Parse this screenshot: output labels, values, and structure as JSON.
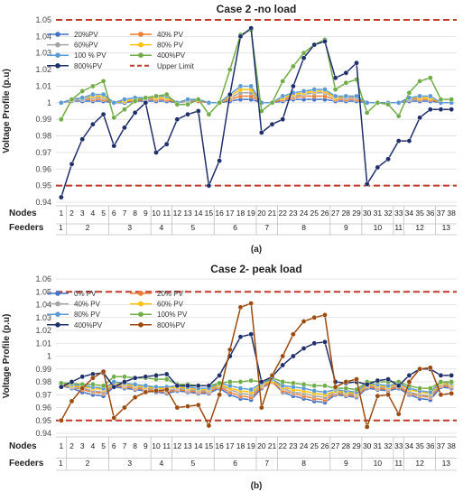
{
  "chart_data": [
    {
      "type": "line",
      "title": "Case 2 -no load",
      "ylabel": "Voltage Profile (p.u)",
      "xlabel_nodes": "Nodes",
      "xlabel_feeders": "Feeders",
      "panel_label": "(a)",
      "ylim": [
        0.94,
        1.05
      ],
      "yticks": [
        "0.94",
        "0.95",
        "0.96",
        "0.97",
        "0.98",
        "0.99",
        "1",
        "1.01",
        "1.02",
        "1.03",
        "1.04",
        "1.05"
      ],
      "x": [
        1,
        2,
        3,
        4,
        5,
        6,
        7,
        8,
        9,
        10,
        11,
        12,
        13,
        14,
        15,
        16,
        17,
        18,
        19,
        20,
        21,
        22,
        23,
        24,
        25,
        26,
        27,
        28,
        29,
        30,
        31,
        32,
        33,
        34,
        35,
        36,
        37,
        38
      ],
      "feeders": [
        {
          "label": "1",
          "start": 1,
          "end": 1
        },
        {
          "label": "2",
          "start": 2,
          "end": 5
        },
        {
          "label": "3",
          "start": 6,
          "end": 9
        },
        {
          "label": "4",
          "start": 10,
          "end": 11
        },
        {
          "label": "5",
          "start": 12,
          "end": 15
        },
        {
          "label": "6",
          "start": 16,
          "end": 19
        },
        {
          "label": "7",
          "start": 20,
          "end": 21
        },
        {
          "label": "8",
          "start": 22,
          "end": 26
        },
        {
          "label": "9",
          "start": 27,
          "end": 29
        },
        {
          "label": "10",
          "start": 30,
          "end": 32
        },
        {
          "label": "11",
          "start": 33,
          "end": 33
        },
        {
          "label": "12",
          "start": 34,
          "end": 36
        },
        {
          "label": "13",
          "start": 37,
          "end": 38
        }
      ],
      "legend_position": "top-left",
      "series": [
        {
          "name": "20%PV",
          "color": "#4472c4",
          "values": [
            1,
            1.001,
            1.001,
            1.001,
            1.001,
            1,
            1,
            1.001,
            1.001,
            1.001,
            1.001,
            1,
            1.001,
            1.001,
            1,
            1,
            1.001,
            1.002,
            1.002,
            1,
            1,
            1.001,
            1.002,
            1.002,
            1.002,
            1.002,
            1.001,
            1.001,
            1.001,
            1,
            1,
            1,
            1,
            1.001,
            1.001,
            1.001,
            1,
            1
          ]
        },
        {
          "name": "40% PV",
          "color": "#ed7d31",
          "values": [
            1,
            1.001,
            1.002,
            1.002,
            1.002,
            1,
            1.001,
            1.001,
            1.002,
            1.002,
            1.002,
            1,
            1.001,
            1.001,
            1,
            1,
            1.002,
            1.004,
            1.004,
            1,
            1,
            1.002,
            1.003,
            1.004,
            1.004,
            1.004,
            1.002,
            1.002,
            1.002,
            1,
            1,
            1,
            1,
            1.002,
            1.002,
            1.002,
            1,
            1
          ]
        },
        {
          "name": "60%PV",
          "color": "#a5a5a5",
          "values": [
            1,
            1.001,
            1.002,
            1.003,
            1.003,
            1,
            1.001,
            1.002,
            1.002,
            1.003,
            1.003,
            1,
            1.001,
            1.002,
            1,
            1,
            1.003,
            1.006,
            1.006,
            1,
            1,
            1.003,
            1.004,
            1.005,
            1.006,
            1.006,
            1.003,
            1.003,
            1.003,
            1,
            1,
            1,
            1,
            1.002,
            1.003,
            1.003,
            1,
            1
          ]
        },
        {
          "name": "80% PV",
          "color": "#ffc000",
          "values": [
            1,
            1.002,
            1.003,
            1.004,
            1.004,
            1,
            1.001,
            1.002,
            1.003,
            1.003,
            1.003,
            1,
            1.002,
            1.002,
            1,
            1,
            1.004,
            1.008,
            1.008,
            1,
            1,
            1.003,
            1.005,
            1.006,
            1.007,
            1.007,
            1.003,
            1.004,
            1.004,
            1,
            1,
            1,
            1,
            1.003,
            1.003,
            1.003,
            1,
            1
          ]
        },
        {
          "name": "100 % PV",
          "color": "#5b9bd5",
          "values": [
            1,
            1.002,
            1.003,
            1.005,
            1.005,
            1,
            1.002,
            1.003,
            1.003,
            1.004,
            1.004,
            1,
            1.002,
            1.002,
            1,
            1,
            1.005,
            1.01,
            1.01,
            1,
            1,
            1.004,
            1.006,
            1.007,
            1.008,
            1.008,
            1.004,
            1.004,
            1.004,
            1,
            1,
            1,
            1,
            1.003,
            1.004,
            1.004,
            1,
            1
          ]
        },
        {
          "name": "400%PV",
          "color": "#70ad47",
          "values": [
            0.99,
            1.002,
            1.007,
            1.01,
            1.013,
            0.991,
            0.996,
            1.001,
            1.003,
            1.004,
            1.005,
            0.999,
            0.999,
            1.002,
            0.993,
            1.0,
            1.02,
            1.041,
            1.044,
            0.995,
            1.0,
            1.013,
            1.022,
            1.03,
            1.035,
            1.038,
            1.008,
            1.012,
            1.014,
            0.994,
            1.0,
            0.999,
            0.992,
            1.006,
            1.013,
            1.015,
            1.002,
            1.002
          ]
        },
        {
          "name": "800%PV",
          "color": "#1f2f6b",
          "values": [
            0.943,
            0.963,
            0.978,
            0.987,
            0.993,
            0.974,
            0.985,
            0.994,
            1.0,
            0.97,
            0.975,
            0.99,
            0.993,
            0.995,
            0.95,
            0.965,
            1.005,
            1.04,
            1.045,
            0.982,
            0.987,
            0.99,
            1.01,
            1.027,
            1.035,
            1.037,
            1.015,
            1.018,
            1.024,
            0.951,
            0.961,
            0.966,
            0.977,
            0.977,
            0.991,
            0.996,
            0.996,
            0.996
          ]
        },
        {
          "name": "Upper Limit",
          "color": "#c0392b",
          "dashed": true,
          "values": [
            1.05,
            1.05,
            1.05,
            1.05,
            1.05,
            1.05,
            1.05,
            1.05,
            1.05,
            1.05,
            1.05,
            1.05,
            1.05,
            1.05,
            1.05,
            1.05,
            1.05,
            1.05,
            1.05,
            1.05,
            1.05,
            1.05,
            1.05,
            1.05,
            1.05,
            1.05,
            1.05,
            1.05,
            1.05,
            1.05,
            1.05,
            1.05,
            1.05,
            1.05,
            1.05,
            1.05,
            1.05,
            1.05
          ]
        }
      ],
      "lower_limit": 0.95
    },
    {
      "type": "line",
      "title": "Case 2- peak load",
      "ylabel": "Voltage Profile (p.u)",
      "xlabel_nodes": "Nodes",
      "xlabel_feeders": "Feeders",
      "panel_label": "(b)",
      "ylim": [
        0.94,
        1.06
      ],
      "yticks": [
        "0.94",
        "0.95",
        "0.96",
        "0.97",
        "0.98",
        "0.99",
        "1",
        "1.01",
        "1.02",
        "1.03",
        "1.04",
        "1.05",
        "1.06"
      ],
      "x": [
        1,
        2,
        3,
        4,
        5,
        6,
        7,
        8,
        9,
        10,
        11,
        12,
        13,
        14,
        15,
        16,
        17,
        18,
        19,
        20,
        21,
        22,
        23,
        24,
        25,
        26,
        27,
        28,
        29,
        30,
        31,
        32,
        33,
        34,
        35,
        36,
        37,
        38
      ],
      "feeders": [
        {
          "label": "1",
          "start": 1,
          "end": 1
        },
        {
          "label": "2",
          "start": 2,
          "end": 5
        },
        {
          "label": "3",
          "start": 6,
          "end": 9
        },
        {
          "label": "4",
          "start": 10,
          "end": 11
        },
        {
          "label": "5",
          "start": 12,
          "end": 15
        },
        {
          "label": "6",
          "start": 16,
          "end": 19
        },
        {
          "label": "7",
          "start": 20,
          "end": 21
        },
        {
          "label": "8",
          "start": 22,
          "end": 26
        },
        {
          "label": "9",
          "start": 27,
          "end": 29
        },
        {
          "label": "10",
          "start": 30,
          "end": 32
        },
        {
          "label": "11",
          "start": 33,
          "end": 33
        },
        {
          "label": "12",
          "start": 34,
          "end": 36
        },
        {
          "label": "13",
          "start": 37,
          "end": 38
        }
      ],
      "legend_position": "top-left",
      "series": [
        {
          "name": "0% PV",
          "color": "#4472c4",
          "values": [
            0.977,
            0.975,
            0.972,
            0.97,
            0.969,
            0.976,
            0.975,
            0.974,
            0.973,
            0.972,
            0.971,
            0.973,
            0.972,
            0.971,
            0.971,
            0.975,
            0.97,
            0.967,
            0.966,
            0.975,
            0.98,
            0.972,
            0.969,
            0.967,
            0.965,
            0.964,
            0.97,
            0.969,
            0.968,
            0.975,
            0.974,
            0.973,
            0.975,
            0.97,
            0.967,
            0.966,
            0.976,
            0.975
          ]
        },
        {
          "name": "20% PV",
          "color": "#ed7d31",
          "values": [
            0.977,
            0.976,
            0.974,
            0.972,
            0.971,
            0.977,
            0.976,
            0.975,
            0.974,
            0.973,
            0.972,
            0.974,
            0.973,
            0.972,
            0.972,
            0.976,
            0.972,
            0.969,
            0.968,
            0.976,
            0.98,
            0.973,
            0.971,
            0.969,
            0.967,
            0.966,
            0.971,
            0.97,
            0.969,
            0.976,
            0.975,
            0.974,
            0.976,
            0.971,
            0.969,
            0.968,
            0.977,
            0.976
          ]
        },
        {
          "name": "40% PV",
          "color": "#a5a5a5",
          "values": [
            0.978,
            0.976,
            0.975,
            0.973,
            0.972,
            0.978,
            0.977,
            0.976,
            0.975,
            0.974,
            0.973,
            0.975,
            0.974,
            0.973,
            0.973,
            0.977,
            0.974,
            0.971,
            0.97,
            0.977,
            0.981,
            0.975,
            0.972,
            0.971,
            0.969,
            0.968,
            0.972,
            0.971,
            0.97,
            0.977,
            0.976,
            0.975,
            0.977,
            0.972,
            0.97,
            0.969,
            0.978,
            0.977
          ]
        },
        {
          "name": "60% PV",
          "color": "#ffc000",
          "values": [
            0.978,
            0.977,
            0.976,
            0.975,
            0.974,
            0.979,
            0.978,
            0.977,
            0.976,
            0.975,
            0.975,
            0.976,
            0.975,
            0.974,
            0.974,
            0.978,
            0.975,
            0.973,
            0.972,
            0.978,
            0.981,
            0.976,
            0.974,
            0.973,
            0.971,
            0.97,
            0.973,
            0.972,
            0.971,
            0.978,
            0.977,
            0.976,
            0.978,
            0.974,
            0.972,
            0.971,
            0.979,
            0.978
          ]
        },
        {
          "name": "80% PV",
          "color": "#5b9bd5",
          "values": [
            0.979,
            0.978,
            0.977,
            0.976,
            0.975,
            0.98,
            0.979,
            0.978,
            0.977,
            0.976,
            0.976,
            0.977,
            0.976,
            0.975,
            0.975,
            0.979,
            0.977,
            0.975,
            0.974,
            0.979,
            0.982,
            0.977,
            0.976,
            0.975,
            0.973,
            0.972,
            0.974,
            0.973,
            0.972,
            0.979,
            0.978,
            0.977,
            0.979,
            0.975,
            0.973,
            0.972,
            0.98,
            0.979
          ]
        },
        {
          "name": "100% PV",
          "color": "#70ad47",
          "values": [
            0.979,
            0.979,
            0.978,
            0.978,
            0.977,
            0.984,
            0.984,
            0.983,
            0.983,
            0.982,
            0.982,
            0.978,
            0.978,
            0.977,
            0.977,
            0.979,
            0.98,
            0.98,
            0.981,
            0.98,
            0.983,
            0.98,
            0.979,
            0.978,
            0.977,
            0.977,
            0.975,
            0.975,
            0.974,
            0.98,
            0.98,
            0.98,
            0.98,
            0.977,
            0.975,
            0.975,
            0.98,
            0.98
          ]
        },
        {
          "name": "400%PV",
          "color": "#1f2f6b",
          "values": [
            0.976,
            0.98,
            0.984,
            0.986,
            0.987,
            0.976,
            0.98,
            0.983,
            0.984,
            0.985,
            0.986,
            0.977,
            0.977,
            0.977,
            0.977,
            0.985,
            1.0,
            1.015,
            1.017,
            0.98,
            0.984,
            0.993,
            1.0,
            1.006,
            1.01,
            1.011,
            0.98,
            0.979,
            0.98,
            0.978,
            0.981,
            0.982,
            0.977,
            0.985,
            0.99,
            0.99,
            0.985,
            0.985
          ]
        },
        {
          "name": "800%PV",
          "color": "#9c4a0e",
          "values": [
            0.95,
            0.965,
            0.975,
            0.983,
            0.988,
            0.952,
            0.96,
            0.968,
            0.972,
            0.973,
            0.974,
            0.96,
            0.961,
            0.962,
            0.946,
            0.97,
            1.005,
            1.038,
            1.041,
            0.96,
            0.985,
            1.0,
            1.017,
            1.027,
            1.03,
            1.032,
            0.976,
            0.98,
            0.982,
            0.945,
            0.969,
            0.97,
            0.955,
            0.98,
            0.99,
            0.991,
            0.97,
            0.971
          ]
        }
      ],
      "upper_limit": 1.05,
      "lower_limit": 0.95
    }
  ]
}
